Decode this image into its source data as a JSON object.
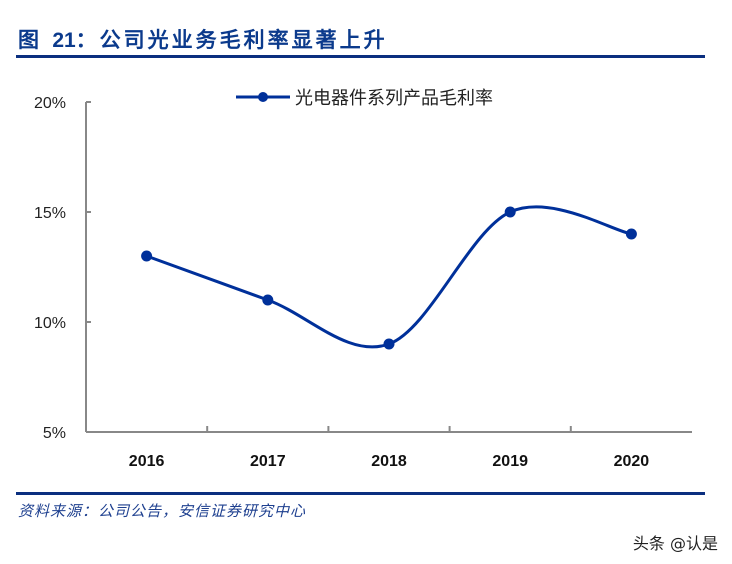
{
  "figure": {
    "title_prefix": "图 ",
    "title_number": "21",
    "title_text": "：公司光业务毛利率显著上升",
    "source": "资料来源：公司公告，安信证券研究中心",
    "watermark": "头条 @认是"
  },
  "colors": {
    "series": "#00309a",
    "axis": "#888888",
    "title": "#0b3a8c",
    "rule": "#0b2f7f"
  },
  "chart_data": {
    "type": "line",
    "title": "公司光业务毛利率显著上升",
    "xlabel": "",
    "ylabel": "",
    "categories": [
      "2016",
      "2017",
      "2018",
      "2019",
      "2020"
    ],
    "series": [
      {
        "name": "光电器件系列产品毛利率",
        "values": [
          13,
          11,
          9,
          15,
          14
        ],
        "unit": "%",
        "smooth": true,
        "marker": "circle"
      }
    ],
    "ylim": [
      5,
      20
    ],
    "yticks": [
      "5%",
      "10%",
      "15%",
      "20%"
    ],
    "grid": false,
    "legend_position": "top-center"
  }
}
